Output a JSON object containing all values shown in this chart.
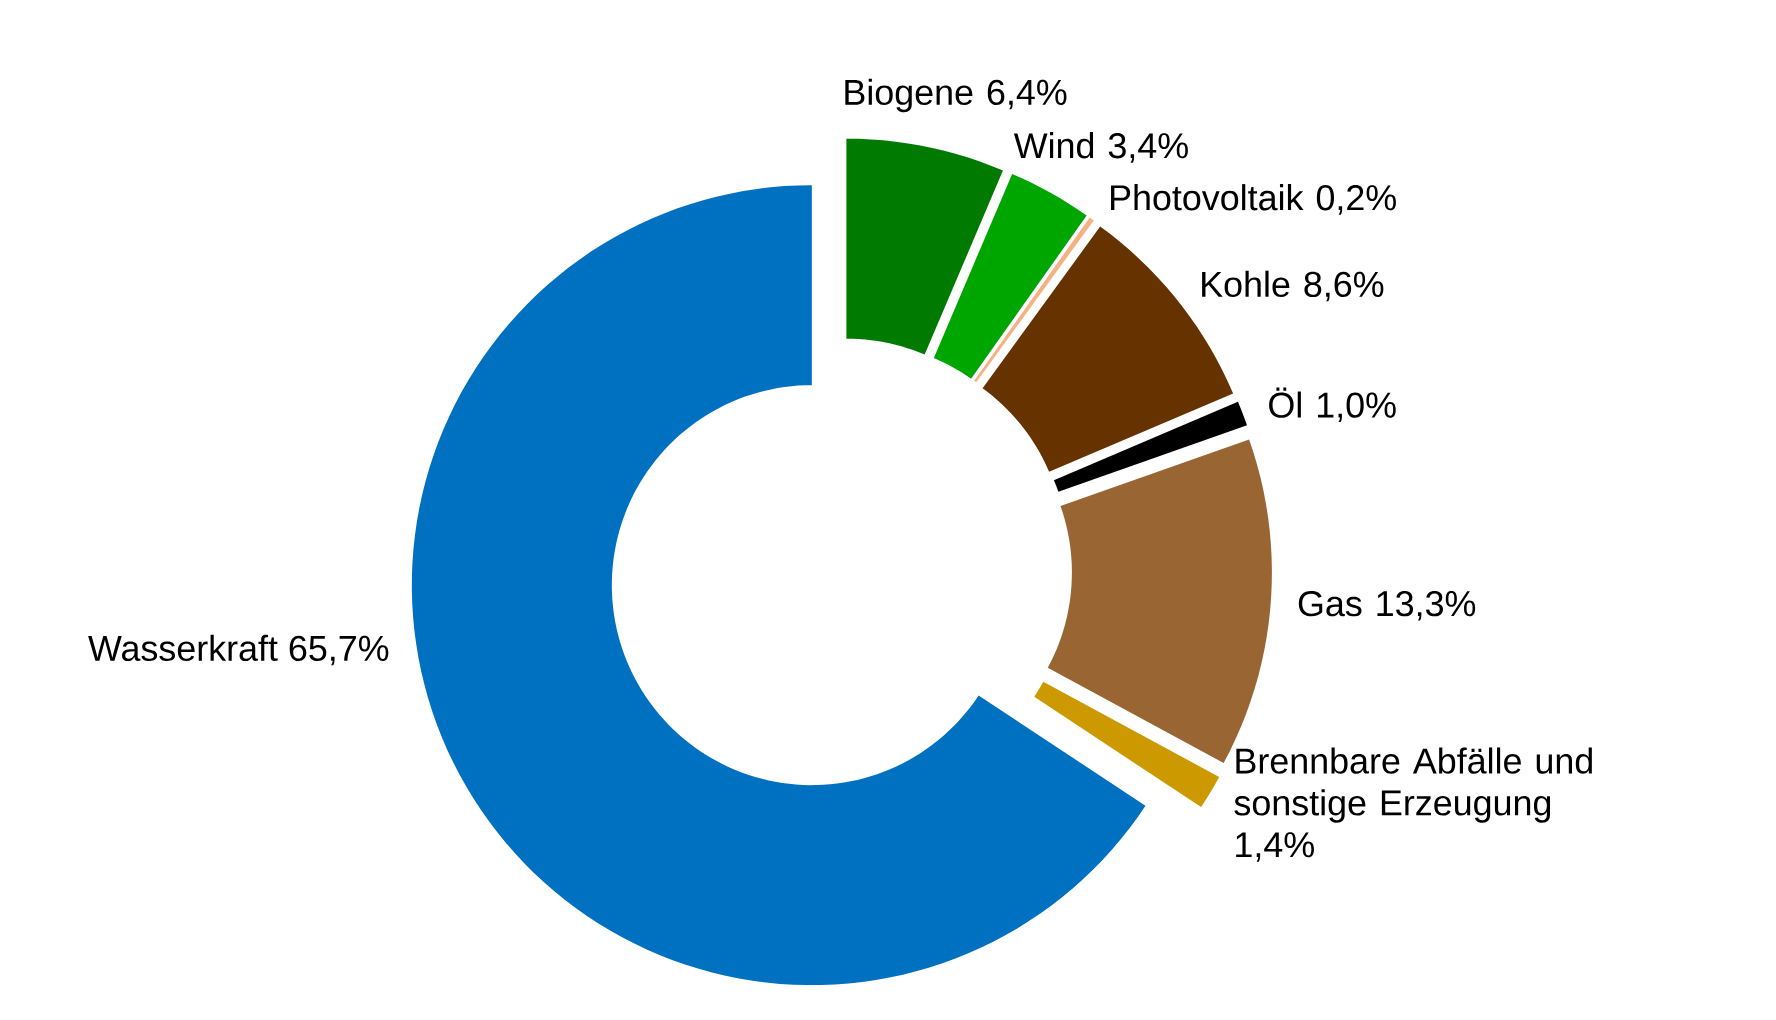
{
  "chart_data": {
    "type": "donut",
    "categories": [
      "Biogene",
      "Wind",
      "Photovoltaik",
      "Kohle",
      "Öl",
      "Gas",
      "Brennbare Abfälle und sonstige Erzeugung",
      "Wasserkraft"
    ],
    "values": [
      6.4,
      3.4,
      0.2,
      8.6,
      1.0,
      13.3,
      1.4,
      65.7
    ],
    "value_labels": [
      "6,4%",
      "3,4%",
      "0,2%",
      "8,6%",
      "1,0%",
      "13,3%",
      "1,4%",
      "65,7%"
    ],
    "colors": [
      "#007a00",
      "#00a600",
      "#f4b183",
      "#663300",
      "#000000",
      "#996633",
      "#cc9900",
      "#0070c0"
    ]
  }
}
